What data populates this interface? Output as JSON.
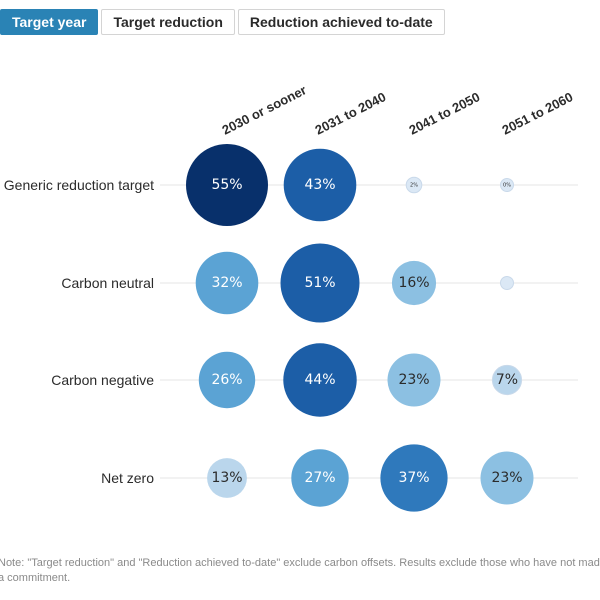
{
  "tabs": [
    {
      "label": "Target year",
      "active": true
    },
    {
      "label": "Target reduction",
      "active": false
    },
    {
      "label": "Reduction achieved to-date",
      "active": false
    }
  ],
  "colors": {
    "accent": "#2a83b5",
    "bubble_scale": [
      "#dbe8f5",
      "#bad6ec",
      "#8cc0e2",
      "#5ba3d4",
      "#2f79bc",
      "#1c5ea7",
      "#08306b"
    ],
    "gridline": "#e6e6e6"
  },
  "chart_data": {
    "type": "bubble-matrix",
    "title": "",
    "columns": [
      "2030 or sooner",
      "2031 to 2040",
      "2041 to 2050",
      "2051 to 2060"
    ],
    "rows": [
      "Generic reduction target",
      "Carbon neutral",
      "Carbon negative",
      "Net zero"
    ],
    "values": [
      [
        55,
        43,
        2,
        0
      ],
      [
        32,
        51,
        16,
        0
      ],
      [
        26,
        44,
        23,
        7
      ],
      [
        13,
        27,
        37,
        23
      ]
    ],
    "labels": [
      [
        "55%",
        "43%",
        "2%",
        "0%"
      ],
      [
        "32%",
        "51%",
        "16%",
        ""
      ],
      [
        "26%",
        "44%",
        "23%",
        "7%"
      ],
      [
        "13%",
        "27%",
        "37%",
        "23%"
      ]
    ],
    "unit": "%",
    "grid": "horizontal row lines"
  },
  "note": "Note: \"Target reduction\" and \"Reduction achieved to-date\" exclude carbon offsets. Results exclude those who have not made a commitment."
}
